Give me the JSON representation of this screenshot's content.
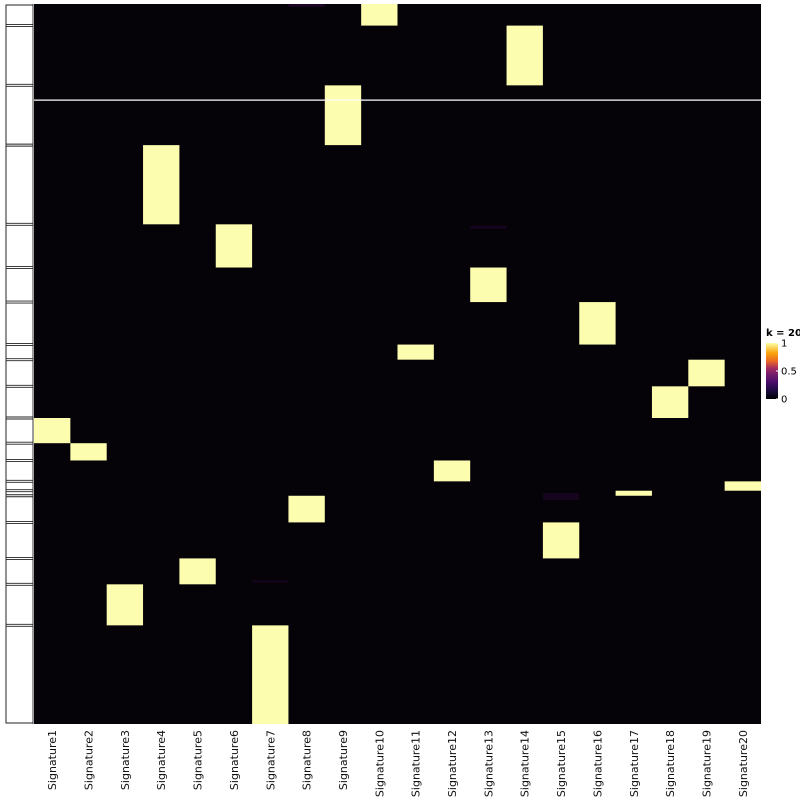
{
  "chart_data": {
    "type": "heatmap",
    "title": "",
    "xlabel": "",
    "ylabel": "",
    "columns": [
      "Signature1",
      "Signature2",
      "Signature3",
      "Signature4",
      "Signature5",
      "Signature6",
      "Signature7",
      "Signature8",
      "Signature9",
      "Signature10",
      "Signature11",
      "Signature12",
      "Signature13",
      "Signature14",
      "Signature15",
      "Signature16",
      "Signature17",
      "Signature18",
      "Signature19",
      "Signature20"
    ],
    "value_range": [
      0,
      1
    ],
    "colormap": "inferno",
    "background_color": "#050208",
    "high_color": "#fcfdae",
    "row_dendrogram": true,
    "dendrogram_groups": 20,
    "legend": {
      "title": "k = 20",
      "ticks": [
        1,
        0.5,
        0
      ],
      "placement": "right"
    },
    "blocks": [
      {
        "signature": "Signature10",
        "row_start": 0.0,
        "row_end": 0.03,
        "value": 1
      },
      {
        "signature": "Signature14",
        "row_start": 0.03,
        "row_end": 0.113,
        "value": 1
      },
      {
        "signature": "Signature9",
        "row_start": 0.113,
        "row_end": 0.196,
        "value": 1
      },
      {
        "signature": "Signature4",
        "row_start": 0.196,
        "row_end": 0.306,
        "value": 1
      },
      {
        "signature": "Signature6",
        "row_start": 0.306,
        "row_end": 0.366,
        "value": 1
      },
      {
        "signature": "Signature13",
        "row_start": 0.366,
        "row_end": 0.414,
        "value": 1
      },
      {
        "signature": "Signature16",
        "row_start": 0.414,
        "row_end": 0.473,
        "value": 1
      },
      {
        "signature": "Signature11",
        "row_start": 0.473,
        "row_end": 0.494,
        "value": 1
      },
      {
        "signature": "Signature19",
        "row_start": 0.494,
        "row_end": 0.531,
        "value": 1
      },
      {
        "signature": "Signature18",
        "row_start": 0.531,
        "row_end": 0.575,
        "value": 1
      },
      {
        "signature": "Signature1",
        "row_start": 0.575,
        "row_end": 0.61,
        "value": 1
      },
      {
        "signature": "Signature2",
        "row_start": 0.61,
        "row_end": 0.634,
        "value": 1
      },
      {
        "signature": "Signature12",
        "row_start": 0.634,
        "row_end": 0.663,
        "value": 1
      },
      {
        "signature": "Signature20",
        "row_start": 0.663,
        "row_end": 0.676,
        "value": 1
      },
      {
        "signature": "Signature17",
        "row_start": 0.676,
        "row_end": 0.683,
        "value": 1
      },
      {
        "signature": "Signature8",
        "row_start": 0.683,
        "row_end": 0.72,
        "value": 1
      },
      {
        "signature": "Signature15",
        "row_start": 0.72,
        "row_end": 0.77,
        "value": 1
      },
      {
        "signature": "Signature5",
        "row_start": 0.77,
        "row_end": 0.806,
        "value": 1
      },
      {
        "signature": "Signature3",
        "row_start": 0.806,
        "row_end": 0.863,
        "value": 1
      },
      {
        "signature": "Signature7",
        "row_start": 0.863,
        "row_end": 1.0,
        "value": 1
      }
    ],
    "faint_marks": [
      {
        "signature": "Signature8",
        "row_start": 0.0,
        "row_end": 0.004,
        "value": 0.15
      },
      {
        "signature": "Signature13",
        "row_start": 0.308,
        "row_end": 0.312,
        "value": 0.12
      },
      {
        "signature": "Signature15",
        "row_start": 0.679,
        "row_end": 0.689,
        "value": 0.1
      },
      {
        "signature": "Signature7",
        "row_start": 0.8,
        "row_end": 0.804,
        "value": 0.08
      }
    ],
    "row_separator_at": 0.1335
  }
}
